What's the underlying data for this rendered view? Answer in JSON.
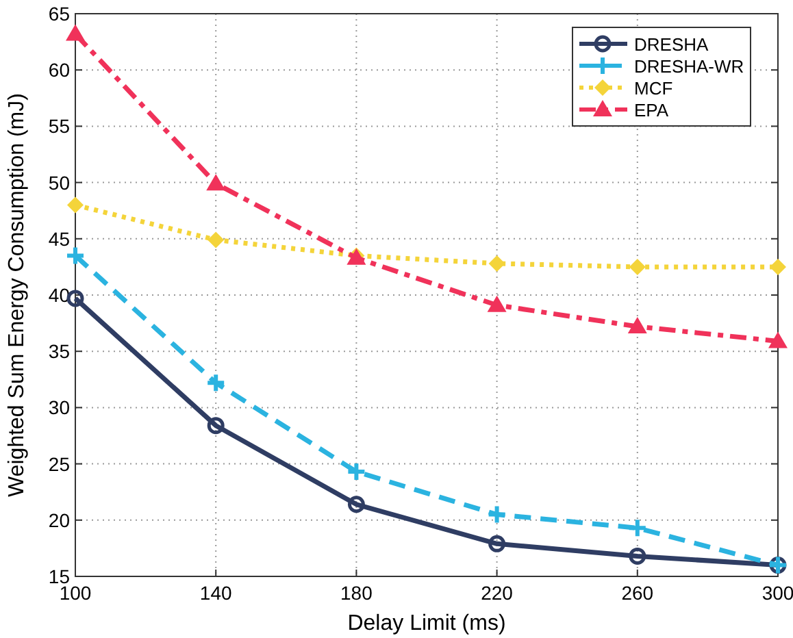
{
  "chart_data": {
    "type": "line",
    "xlabel": "Delay Limit (ms)",
    "ylabel": "Weighted Sum Energy Consumption (mJ)",
    "x": [
      100,
      140,
      180,
      220,
      260,
      300
    ],
    "series": [
      {
        "name": "DRESHA",
        "color": "#2f3d63",
        "values": [
          39.7,
          28.4,
          21.4,
          17.9,
          16.8,
          16.0
        ],
        "marker": "circle",
        "line_style": "solid"
      },
      {
        "name": "DRESHA-WR",
        "color": "#2bb3e0",
        "values": [
          43.5,
          32.2,
          24.3,
          20.5,
          19.3,
          16.0
        ],
        "marker": "cross",
        "line_style": "dashed"
      },
      {
        "name": "MCF",
        "color": "#f4d43a",
        "values": [
          48.0,
          44.9,
          43.5,
          42.8,
          42.5,
          42.5
        ],
        "marker": "diamond",
        "line_style": "dotted"
      },
      {
        "name": "EPA",
        "color": "#f0325a",
        "values": [
          63.2,
          49.9,
          43.3,
          39.1,
          37.2,
          35.9
        ],
        "marker": "triangle",
        "line_style": "dashdot"
      }
    ],
    "xlim": [
      100,
      300
    ],
    "xticks": [
      100,
      140,
      180,
      220,
      260,
      300
    ],
    "ylim": [
      15,
      65
    ],
    "yticks": [
      15,
      20,
      25,
      30,
      35,
      40,
      45,
      50,
      55,
      60,
      65
    ],
    "grid": true,
    "legend": "top right"
  }
}
